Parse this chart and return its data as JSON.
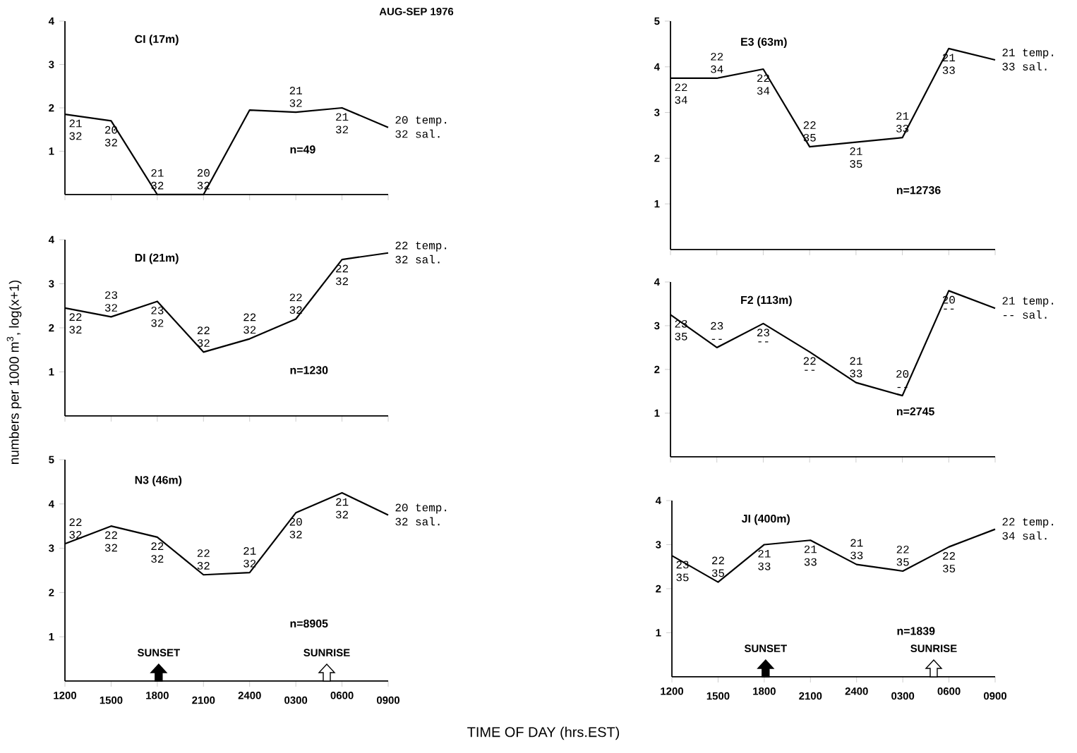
{
  "chart_data": [
    {
      "type": "line",
      "title": "CI (17m)",
      "subtitle": "AUG-SEP 1976",
      "categories": [
        "1200",
        "1500",
        "1800",
        "2100",
        "2400",
        "0300",
        "0600",
        "0900"
      ],
      "values": [
        1.85,
        1.7,
        0,
        0,
        1.95,
        1.9,
        2.0,
        1.55
      ],
      "color": "#000000",
      "ylim": [
        0,
        4
      ],
      "yticks": [
        1,
        2,
        3,
        4
      ],
      "tick_labels": "y",
      "annotations": [
        {
          "text": "21",
          "x": "1200",
          "y": 1.85
        },
        {
          "text": "32",
          "x": "1200",
          "y": 1.85
        },
        {
          "text": "20",
          "x": "1500",
          "y": 1.7
        },
        {
          "text": "32",
          "x": "1500",
          "y": 1.7
        },
        {
          "text": "21",
          "x": "1800",
          "y": 0
        },
        {
          "text": "32",
          "x": "1800",
          "y": 0
        },
        {
          "text": "20",
          "x": "2100",
          "y": 0
        },
        {
          "text": "32",
          "x": "2100",
          "y": 0
        },
        {
          "text": "21",
          "x": "0300",
          "y": 1.9
        },
        {
          "text": "32",
          "x": "0300",
          "y": 1.9
        },
        {
          "text": "21",
          "x": "0600",
          "y": 2.0
        },
        {
          "text": "32",
          "x": "0600",
          "y": 2.0
        },
        {
          "text": "20 temp.",
          "x": "0900",
          "y": 1.55
        },
        {
          "text": "32 sal.",
          "x": "0900",
          "y": 1.55
        },
        "n=49"
      ]
    },
    {
      "type": "line",
      "title": "E3 (63m)",
      "categories": [
        "1200",
        "1500",
        "1800",
        "2100",
        "2400",
        "0300",
        "0600",
        "0900"
      ],
      "values": [
        3.75,
        3.75,
        3.95,
        2.25,
        2.35,
        2.45,
        4.4,
        4.15
      ],
      "color": "#000000",
      "ylim": [
        0,
        5
      ],
      "yticks": [
        1,
        2,
        3,
        4,
        5
      ],
      "tick_labels": "y",
      "annotations": [
        {
          "text": "22",
          "x": "1200",
          "y": 3.75
        },
        {
          "text": "34",
          "x": "1200",
          "y": 3.75
        },
        {
          "text": "22",
          "x": "1500",
          "y": 3.75
        },
        {
          "text": "34",
          "x": "1500",
          "y": 3.75
        },
        {
          "text": "22",
          "x": "1800",
          "y": 3.95
        },
        {
          "text": "34",
          "x": "1800",
          "y": 3.95
        },
        {
          "text": "22",
          "x": "2100",
          "y": 2.25
        },
        {
          "text": "35",
          "x": "2100",
          "y": 2.25
        },
        {
          "text": "21",
          "x": "2400",
          "y": 2.35
        },
        {
          "text": "35",
          "x": "2400",
          "y": 2.35
        },
        {
          "text": "21",
          "x": "0300",
          "y": 2.45
        },
        {
          "text": "33",
          "x": "0300",
          "y": 2.45
        },
        {
          "text": "21",
          "x": "0600",
          "y": 4.4
        },
        {
          "text": "33",
          "x": "0600",
          "y": 4.4
        },
        {
          "text": "21 temp.",
          "x": "0900",
          "y": 4.15
        },
        {
          "text": "33 sal.",
          "x": "0900",
          "y": 4.15
        },
        "n=12736"
      ]
    },
    {
      "type": "line",
      "title": "DI (21m)",
      "ylabel": "numbers per 1000 m$^{3}$, log(x+1)",
      "categories": [
        "1200",
        "1500",
        "1800",
        "2100",
        "2400",
        "0300",
        "0600",
        "0900"
      ],
      "values": [
        2.45,
        2.25,
        2.6,
        1.45,
        1.75,
        2.2,
        3.55,
        3.7
      ],
      "color": "#000000",
      "ylim": [
        0,
        4
      ],
      "yticks": [
        1,
        2,
        3,
        4
      ],
      "tick_labels": "y",
      "annotations": [
        {
          "text": "22",
          "x": "1200",
          "y": 2.45
        },
        {
          "text": "32",
          "x": "1200",
          "y": 2.45
        },
        {
          "text": "23",
          "x": "1500",
          "y": 2.25
        },
        {
          "text": "32",
          "x": "1500",
          "y": 2.25
        },
        {
          "text": "23",
          "x": "1800",
          "y": 2.6
        },
        {
          "text": "32",
          "x": "1800",
          "y": 2.6
        },
        {
          "text": "22",
          "x": "2100",
          "y": 1.45
        },
        {
          "text": "32",
          "x": "2100",
          "y": 1.45
        },
        {
          "text": "22",
          "x": "2400",
          "y": 1.75
        },
        {
          "text": "32",
          "x": "2400",
          "y": 1.75
        },
        {
          "text": "22",
          "x": "0300",
          "y": 2.2
        },
        {
          "text": "32",
          "x": "0300",
          "y": 2.2
        },
        {
          "text": "22",
          "x": "0600",
          "y": 3.55
        },
        {
          "text": "32",
          "x": "0600",
          "y": 3.55
        },
        {
          "text": "22 temp.",
          "x": "0900",
          "y": 3.7
        },
        {
          "text": "32 sal.",
          "x": "0900",
          "y": 3.7
        },
        "n=1230"
      ]
    },
    {
      "type": "line",
      "title": "F2 (113m)",
      "categories": [
        "1200",
        "1500",
        "1800",
        "2100",
        "2400",
        "0300",
        "0600",
        "0900"
      ],
      "values": [
        3.25,
        2.5,
        3.05,
        2.4,
        1.7,
        1.4,
        3.8,
        3.4
      ],
      "color": "#000000",
      "ylim": [
        0,
        4
      ],
      "yticks": [
        1,
        2,
        3,
        4
      ],
      "tick_labels": "y",
      "annotations": [
        {
          "text": "23",
          "x": "1200",
          "y": 3.25
        },
        {
          "text": "35",
          "x": "1200",
          "y": 3.25
        },
        {
          "text": "23",
          "x": "1500",
          "y": 2.5
        },
        {
          "text": "--",
          "x": "1500",
          "y": 2.5
        },
        {
          "text": "23",
          "x": "1800",
          "y": 3.05
        },
        {
          "text": "--",
          "x": "1800",
          "y": 3.05
        },
        {
          "text": "22",
          "x": "2100",
          "y": 2.4
        },
        {
          "text": "--",
          "x": "2100",
          "y": 2.4
        },
        {
          "text": "21",
          "x": "2400",
          "y": 1.7
        },
        {
          "text": "33",
          "x": "2400",
          "y": 1.7
        },
        {
          "text": "20",
          "x": "0300",
          "y": 1.4
        },
        {
          "text": "--",
          "x": "0300",
          "y": 1.4
        },
        {
          "text": "20",
          "x": "0600",
          "y": 3.8
        },
        {
          "text": "--",
          "x": "0600",
          "y": 3.8
        },
        {
          "text": "21 temp.",
          "x": "0900",
          "y": 3.4
        },
        {
          "text": "-- sal.",
          "x": "0900",
          "y": 3.4
        },
        "n=2745"
      ]
    },
    {
      "type": "line",
      "title": "N3 (46m)",
      "xlabel": "TIME OF DAY (hrs.EST)",
      "categories": [
        "1200",
        "1500",
        "1800",
        "2100",
        "2400",
        "0300",
        "0600",
        "0900"
      ],
      "values": [
        3.1,
        3.5,
        3.25,
        2.4,
        2.45,
        3.8,
        4.25,
        3.75
      ],
      "color": "#000000",
      "ylim": [
        0,
        5
      ],
      "yticks": [
        1,
        2,
        3,
        4,
        5
      ],
      "annotations": [
        {
          "text": "22",
          "x": "1200",
          "y": 3.1
        },
        {
          "text": "32",
          "x": "1200",
          "y": 3.1
        },
        {
          "text": "22",
          "x": "1500",
          "y": 3.5
        },
        {
          "text": "32",
          "x": "1500",
          "y": 3.5
        },
        {
          "text": "22",
          "x": "1800",
          "y": 3.25
        },
        {
          "text": "32",
          "x": "1800",
          "y": 3.25
        },
        {
          "text": "22",
          "x": "2100",
          "y": 2.4
        },
        {
          "text": "32",
          "x": "2100",
          "y": 2.4
        },
        {
          "text": "21",
          "x": "2400",
          "y": 2.45
        },
        {
          "text": "32",
          "x": "2400",
          "y": 2.45
        },
        {
          "text": "20",
          "x": "0300",
          "y": 3.8
        },
        {
          "text": "32",
          "x": "0300",
          "y": 3.8
        },
        {
          "text": "21",
          "x": "0600",
          "y": 4.25
        },
        {
          "text": "32",
          "x": "0600",
          "y": 4.25
        },
        {
          "text": "20 temp.",
          "x": "0900",
          "y": 3.75
        },
        {
          "text": "32 sal.",
          "x": "0900",
          "y": 3.75
        },
        "SUNSET",
        "SUNRISE",
        "n=8905"
      ]
    },
    {
      "type": "line",
      "title": "JI (400m)",
      "categories": [
        "1200",
        "1500",
        "1800",
        "2100",
        "2400",
        "0300",
        "0600",
        "0900"
      ],
      "values": [
        2.75,
        2.15,
        3.0,
        3.1,
        2.55,
        2.4,
        2.95,
        3.35
      ],
      "color": "#000000",
      "ylim": [
        0,
        4
      ],
      "yticks": [
        1,
        2,
        3,
        4
      ],
      "annotations": [
        {
          "text": "23",
          "x": "1200",
          "y": 2.75
        },
        {
          "text": "35",
          "x": "1200",
          "y": 2.75
        },
        {
          "text": "22",
          "x": "1500",
          "y": 2.15
        },
        {
          "text": "35",
          "x": "1500",
          "y": 2.15
        },
        {
          "text": "21",
          "x": "1800",
          "y": 3.0
        },
        {
          "text": "33",
          "x": "1800",
          "y": 3.0
        },
        {
          "text": "21",
          "x": "2100",
          "y": 3.1
        },
        {
          "text": "33",
          "x": "2100",
          "y": 3.1
        },
        {
          "text": "21",
          "x": "2400",
          "y": 2.55
        },
        {
          "text": "33",
          "x": "2400",
          "y": 2.55
        },
        {
          "text": "22",
          "x": "0300",
          "y": 2.4
        },
        {
          "text": "35",
          "x": "0300",
          "y": 2.4
        },
        {
          "text": "22",
          "x": "0600",
          "y": 2.95
        },
        {
          "text": "35",
          "x": "0600",
          "y": 2.95
        },
        {
          "text": "22 temp.",
          "x": "0900",
          "y": 3.35
        },
        {
          "text": "34 sal.",
          "x": "0900",
          "y": 3.35
        },
        "SUNSET",
        "SUNRISE",
        "n=1839"
      ]
    }
  ]
}
